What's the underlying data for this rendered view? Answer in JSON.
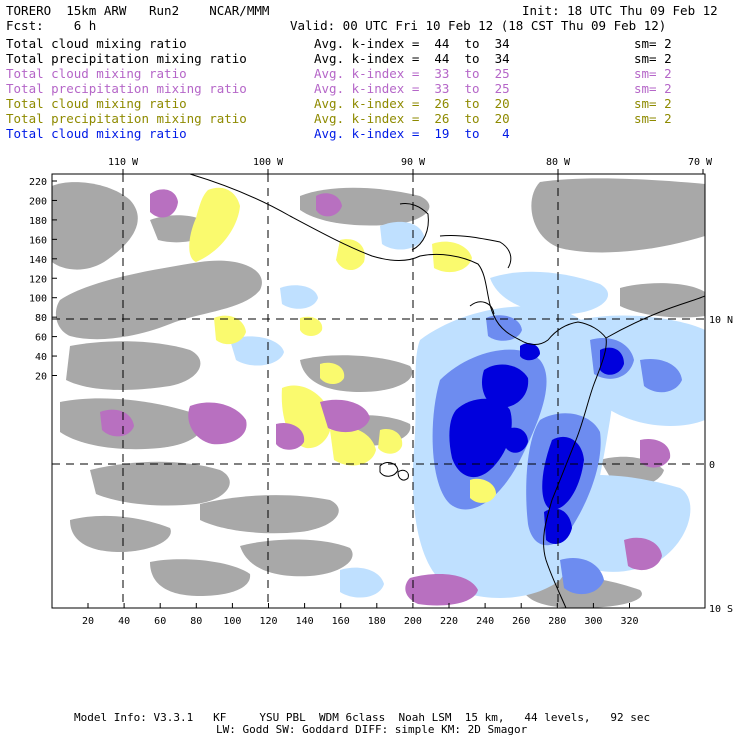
{
  "header": {
    "model": "TORERO  15km ARW   Run2    NCAR/MMM",
    "init": "Init: 18 UTC Thu 09 Feb 12",
    "fcst": "Fcst:    6 h",
    "valid": "Valid: 00 UTC Fri 10 Feb 12 (18 CST Thu 09 Feb 12)"
  },
  "legend": [
    {
      "field": "Total cloud mixing ratio",
      "index": "Avg. k-index =  44  to  34",
      "sm": "sm= 2",
      "color": "#000000"
    },
    {
      "field": "Total precipitation mixing ratio",
      "index": "Avg. k-index =  44  to  34",
      "sm": "sm= 2",
      "color": "#000000"
    },
    {
      "field": "Total cloud mixing ratio",
      "index": "Avg. k-index =  33  to  25",
      "sm": "sm= 2",
      "color": "#b566c8"
    },
    {
      "field": "Total precipitation mixing ratio",
      "index": "Avg. k-index =  33  to  25",
      "sm": "sm= 2",
      "color": "#b566c8"
    },
    {
      "field": "Total cloud mixing ratio",
      "index": "Avg. k-index =  26  to  20",
      "sm": "sm= 2",
      "color": "#8e8a00"
    },
    {
      "field": "Total precipitation mixing ratio",
      "index": "Avg. k-index =  26  to  20",
      "sm": "sm= 2",
      "color": "#8e8a00"
    },
    {
      "field": "Total cloud mixing ratio",
      "index": "Avg. k-index =  19  to   4",
      "sm": "",
      "color": "#0019e6"
    }
  ],
  "map": {
    "lon_labels": [
      "110 W",
      "100 W",
      "90 W",
      "80 W",
      "70 W"
    ],
    "lat_labels": [
      "10 N",
      "0",
      "10 S"
    ],
    "y_ticks": [
      "220",
      "200",
      "180",
      "160",
      "140",
      "120",
      "100",
      "80",
      "60",
      "40",
      "20"
    ],
    "x_ticks": [
      "20",
      "40",
      "60",
      "80",
      "100",
      "120",
      "140",
      "160",
      "180",
      "200",
      "220",
      "240",
      "260",
      "280",
      "300",
      "320"
    ],
    "colors": {
      "gray_cloud": "#a8a8a8",
      "purple_cloud": "#b870c0",
      "yellow_cloud": "#fafa6e",
      "light_blue": "#bfe0ff",
      "mid_blue": "#6d8cf0",
      "dark_blue": "#0000dd",
      "coast": "#000000"
    }
  },
  "footer": {
    "line1": "Model Info: V3.3.1   KF     YSU PBL  WDM 6class  Noah LSM  15 km,   44 levels,   92 sec",
    "line2": "LW: Godd SW: Goddard DIFF: simple KM: 2D Smagor"
  }
}
